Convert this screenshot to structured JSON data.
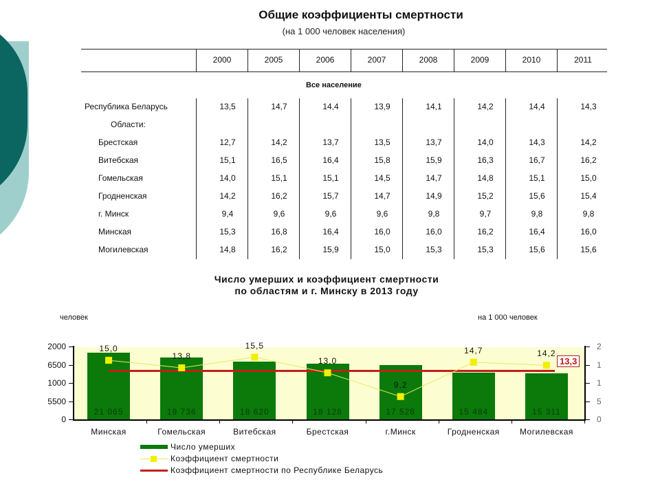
{
  "table": {
    "title": "Общие коэффициенты смертности",
    "subtitle": "(на 1 000 человек населения)",
    "years": [
      "2000",
      "2005",
      "2006",
      "2007",
      "2008",
      "2009",
      "2010",
      "2011"
    ],
    "section": "Все население",
    "subheader": "Области:",
    "rows": [
      {
        "label": "Республика Беларусь",
        "values": [
          "13,5",
          "14,7",
          "14,4",
          "13,9",
          "14,1",
          "14,2",
          "14,4",
          "14,3"
        ]
      },
      {
        "label": "Брестская",
        "values": [
          "12,7",
          "14,2",
          "13,7",
          "13,5",
          "13,7",
          "14,0",
          "14,3",
          "14,2"
        ]
      },
      {
        "label": "Витебская",
        "values": [
          "15,1",
          "16,5",
          "16,4",
          "15,8",
          "15,9",
          "16,3",
          "16,7",
          "16,2"
        ]
      },
      {
        "label": "Гомельская",
        "values": [
          "14,0",
          "15,1",
          "15,1",
          "14,5",
          "14,7",
          "14,8",
          "15,1",
          "15,0"
        ]
      },
      {
        "label": "Гродненская",
        "values": [
          "14,2",
          "16,2",
          "15,7",
          "14,7",
          "14,9",
          "15,2",
          "15,6",
          "15,4"
        ]
      },
      {
        "label": "г. Минск",
        "values": [
          "9,4",
          "9,6",
          "9,6",
          "9,6",
          "9,8",
          "9,7",
          "9,8",
          "9,8"
        ]
      },
      {
        "label": "Минская",
        "values": [
          "15,3",
          "16,8",
          "16,4",
          "16,0",
          "16,0",
          "16,2",
          "16,4",
          "16,0"
        ]
      },
      {
        "label": "Могилевская",
        "values": [
          "14,8",
          "16,2",
          "15,9",
          "15,0",
          "15,3",
          "15,3",
          "15,6",
          "15,6"
        ]
      }
    ]
  },
  "chart": {
    "title_line1": "Число умерших и коэффициент смертности",
    "title_line2": "по областям и г. Минску в 2013 году",
    "unit_left": "человек",
    "unit_right": "на 1 000 человек",
    "y_left_ticks": [
      "2000",
      "6500",
      "1000",
      "5500",
      "0"
    ],
    "y_right_ticks": [
      "2",
      "1",
      "1",
      "5",
      "0"
    ],
    "ref_label": "13,3",
    "legend": {
      "deaths": "Число умерших",
      "coef": "Коэффициент смертности",
      "ref": "Коэффициент смертности по Республике Беларусь"
    },
    "colors": {
      "bar": "#0b7a0b",
      "coef_line": "#f0f000",
      "ref_line": "#c0201a",
      "plot_bg": "#fdfdd2"
    }
  },
  "chart_data": [
    {
      "type": "table",
      "title": "Общие коэффициенты смертности (на 1 000 человек населения)",
      "columns": [
        "",
        "2000",
        "2005",
        "2006",
        "2007",
        "2008",
        "2009",
        "2010",
        "2011"
      ],
      "rows": [
        [
          "Республика Беларусь",
          13.5,
          14.7,
          14.4,
          13.9,
          14.1,
          14.2,
          14.4,
          14.3
        ],
        [
          "Брестская",
          12.7,
          14.2,
          13.7,
          13.5,
          13.7,
          14.0,
          14.3,
          14.2
        ],
        [
          "Витебская",
          15.1,
          16.5,
          16.4,
          15.8,
          15.9,
          16.3,
          16.7,
          16.2
        ],
        [
          "Гомельская",
          14.0,
          15.1,
          15.1,
          14.5,
          14.7,
          14.8,
          15.1,
          15.0
        ],
        [
          "Гродненская",
          14.2,
          16.2,
          15.7,
          14.7,
          14.9,
          15.2,
          15.6,
          15.4
        ],
        [
          "г. Минск",
          9.4,
          9.6,
          9.6,
          9.6,
          9.8,
          9.7,
          9.8,
          9.8
        ],
        [
          "Минская",
          15.3,
          16.8,
          16.4,
          16.0,
          16.0,
          16.2,
          16.4,
          16.0
        ],
        [
          "Могилевская",
          14.8,
          16.2,
          15.9,
          15.0,
          15.3,
          15.3,
          15.6,
          15.6
        ]
      ]
    },
    {
      "type": "bar",
      "title": "Число умерших и коэффициент смертности по областям и г. Минску в 2013 году",
      "categories": [
        "Минская",
        "Гомельская",
        "Витебская",
        "Брестская",
        "г.Минск",
        "Гродненская",
        "Могилевская"
      ],
      "series": [
        {
          "name": "Число умерших",
          "type": "bar",
          "axis": "left",
          "values": [
            21065,
            19736,
            18620,
            18128,
            17528,
            15484,
            15311
          ]
        },
        {
          "name": "Коэффициент смертности",
          "type": "line",
          "axis": "right",
          "values": [
            15.0,
            13.8,
            15.5,
            13.0,
            9.2,
            14.7,
            14.2
          ]
        },
        {
          "name": "Коэффициент смертности по Республике Беларусь",
          "type": "line",
          "axis": "right",
          "values": [
            13.3,
            13.3,
            13.3,
            13.3,
            13.3,
            13.3,
            13.3
          ]
        }
      ],
      "ylabel_left": "человек",
      "ylabel_right": "на 1 000 человек",
      "y_left_tick_labels": [
        "0",
        "5500",
        "1000",
        "6500",
        "2000"
      ],
      "legend_position": "bottom"
    }
  ]
}
